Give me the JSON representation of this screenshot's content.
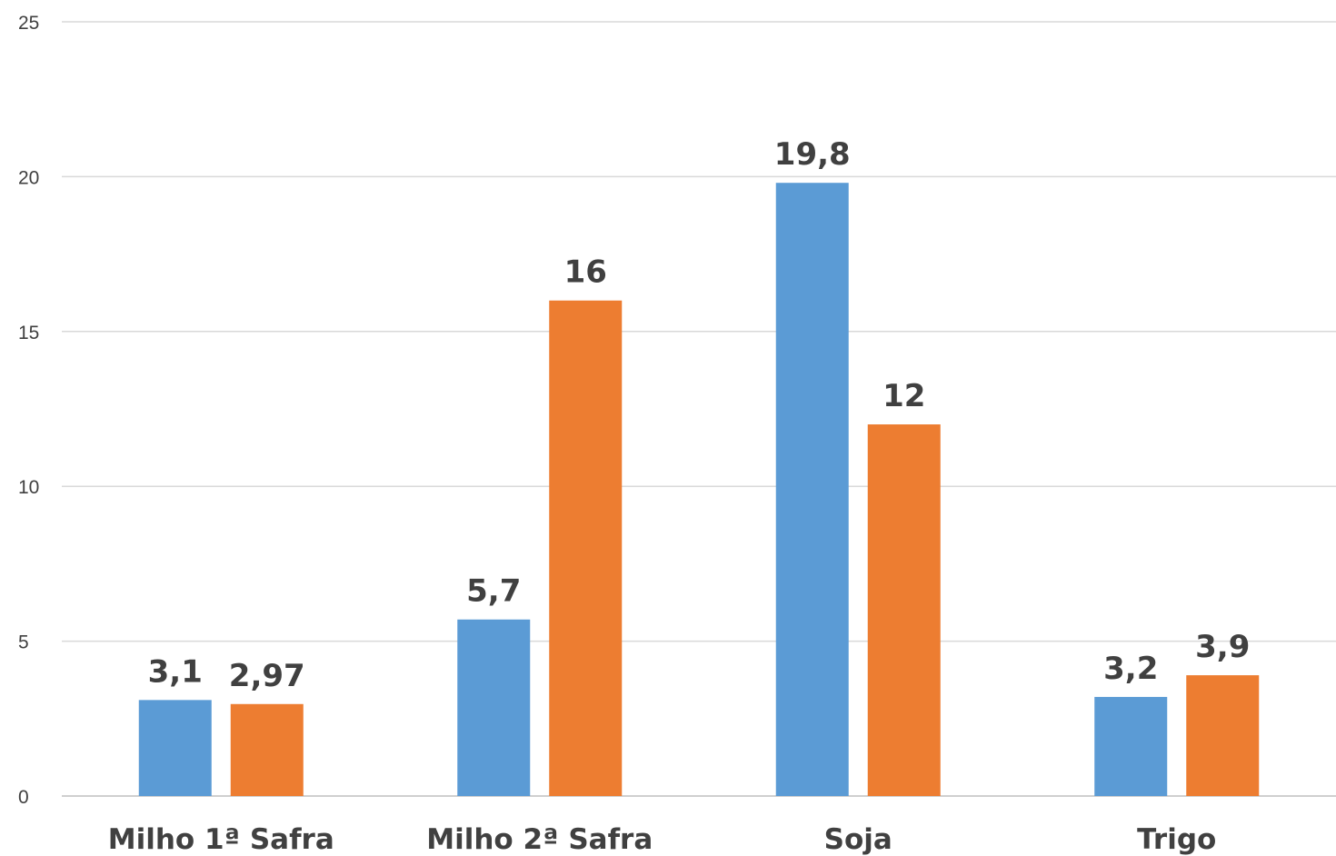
{
  "chart_data": {
    "type": "bar",
    "title": "",
    "xlabel": "",
    "ylabel": "",
    "ylim": [
      0,
      25
    ],
    "y_ticks": [
      "0",
      "5",
      "10",
      "15",
      "20",
      "25"
    ],
    "grid": true,
    "legend": "none",
    "categories": [
      "Milho 1ª Safra",
      "Milho 2ª Safra",
      "Soja",
      "Trigo"
    ],
    "series": [
      {
        "color": "#5b9bd5",
        "values": [
          3.1,
          5.7,
          19.8,
          3.2
        ],
        "labels": [
          "3,1",
          "5,7",
          "19,8",
          "3,2"
        ]
      },
      {
        "color": "#ed7d31",
        "values": [
          2.97,
          16,
          12,
          3.9
        ],
        "labels": [
          "2,97",
          "16",
          "12",
          "3,9"
        ]
      }
    ]
  }
}
